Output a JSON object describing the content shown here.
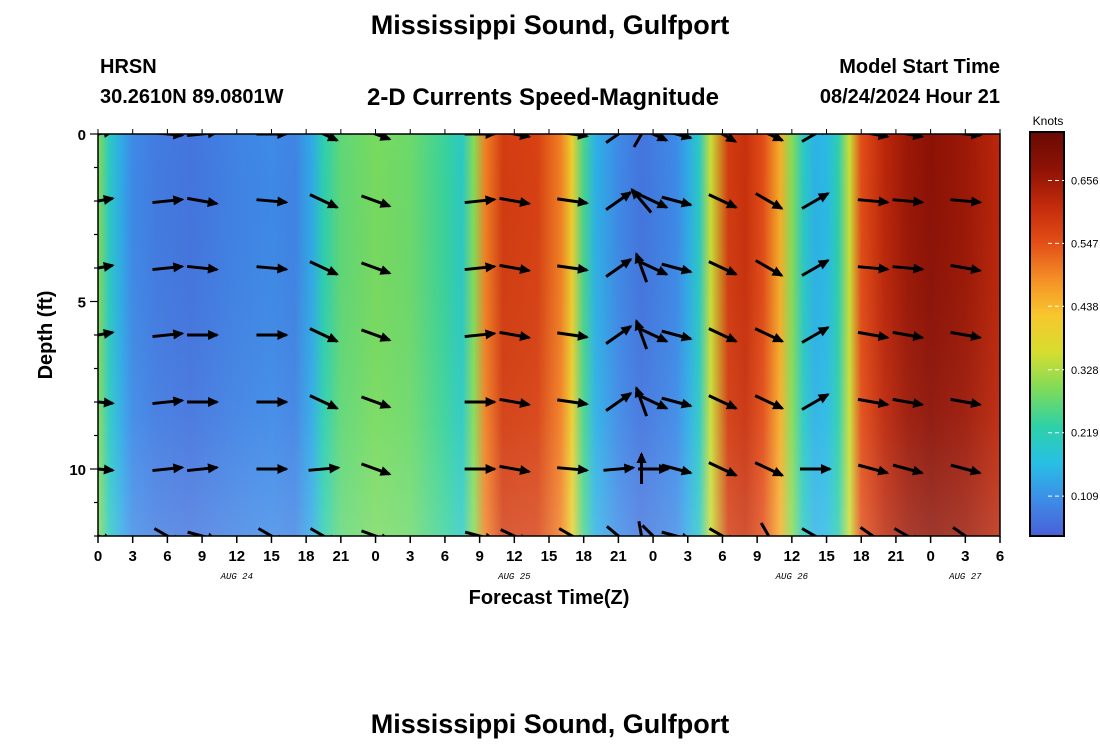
{
  "header": {
    "title": "Mississippi Sound, Gulfport",
    "station": "HRSN",
    "coords": "30.2610N  89.0801W",
    "subtitle": "2-D Currents Speed-Magnitude",
    "model_start_label": "Model Start Time",
    "model_start_value": "08/24/2024 Hour 21"
  },
  "footer": {
    "title": "Mississippi Sound, Gulfport"
  },
  "chart_data": {
    "type": "heatmap",
    "title": "2-D Currents Speed-Magnitude",
    "xlabel": "Forecast Time(Z)",
    "ylabel": "Depth (ft)",
    "x_tick_labels": [
      "0",
      "3",
      "6",
      "9",
      "12",
      "15",
      "18",
      "21",
      "0",
      "3",
      "6",
      "9",
      "12",
      "15",
      "18",
      "21",
      "0",
      "3",
      "6",
      "9",
      "12",
      "15",
      "18",
      "21",
      "0",
      "3",
      "6"
    ],
    "x_range_hours": [
      0,
      78
    ],
    "date_labels": [
      {
        "hour": 12,
        "label": "AUG 24"
      },
      {
        "hour": 36,
        "label": "AUG 25"
      },
      {
        "hour": 60,
        "label": "AUG 26"
      },
      {
        "hour": 75,
        "label": "AUG 27"
      }
    ],
    "y_tick_labels": [
      "0",
      "5",
      "10"
    ],
    "ylim": [
      12,
      0
    ],
    "colorbar": {
      "unit": "Knots",
      "ticks": [
        0.109,
        0.219,
        0.328,
        0.438,
        0.547,
        0.656
      ],
      "range": [
        0.04,
        0.74
      ],
      "stops": [
        "#4a5fd6",
        "#3d8de8",
        "#27c0e4",
        "#2ed1a6",
        "#7edb5a",
        "#d6dd2f",
        "#f7c72d",
        "#f58e26",
        "#e24d17",
        "#c22a0b",
        "#8e1206",
        "#6a0a03"
      ]
    },
    "speed_by_hour": [
      {
        "hour": 0,
        "speed": 0.3
      },
      {
        "hour": 1,
        "speed": 0.2
      },
      {
        "hour": 2,
        "speed": 0.14
      },
      {
        "hour": 3,
        "speed": 0.1
      },
      {
        "hour": 5,
        "speed": 0.08
      },
      {
        "hour": 8,
        "speed": 0.07
      },
      {
        "hour": 12,
        "speed": 0.09
      },
      {
        "hour": 15,
        "speed": 0.1
      },
      {
        "hour": 17,
        "speed": 0.09
      },
      {
        "hour": 18.5,
        "speed": 0.14
      },
      {
        "hour": 19.5,
        "speed": 0.22
      },
      {
        "hour": 21,
        "speed": 0.27
      },
      {
        "hour": 24,
        "speed": 0.29
      },
      {
        "hour": 27,
        "speed": 0.28
      },
      {
        "hour": 30,
        "speed": 0.24
      },
      {
        "hour": 31.5,
        "speed": 0.2
      },
      {
        "hour": 32.5,
        "speed": 0.3
      },
      {
        "hour": 33.5,
        "speed": 0.5
      },
      {
        "hour": 35,
        "speed": 0.58
      },
      {
        "hour": 38,
        "speed": 0.57
      },
      {
        "hour": 40,
        "speed": 0.5
      },
      {
        "hour": 41,
        "speed": 0.4
      },
      {
        "hour": 42,
        "speed": 0.25
      },
      {
        "hour": 43,
        "speed": 0.15
      },
      {
        "hour": 45,
        "speed": 0.1
      },
      {
        "hour": 47,
        "speed": 0.07
      },
      {
        "hour": 48,
        "speed": 0.08
      },
      {
        "hour": 50,
        "speed": 0.1
      },
      {
        "hour": 51,
        "speed": 0.14
      },
      {
        "hour": 52,
        "speed": 0.2
      },
      {
        "hour": 53,
        "speed": 0.35
      },
      {
        "hour": 54.5,
        "speed": 0.58
      },
      {
        "hour": 56,
        "speed": 0.6
      },
      {
        "hour": 57.5,
        "speed": 0.55
      },
      {
        "hour": 59,
        "speed": 0.45
      },
      {
        "hour": 60,
        "speed": 0.3
      },
      {
        "hour": 61,
        "speed": 0.2
      },
      {
        "hour": 62,
        "speed": 0.15
      },
      {
        "hour": 63,
        "speed": 0.16
      },
      {
        "hour": 64,
        "speed": 0.22
      },
      {
        "hour": 65,
        "speed": 0.35
      },
      {
        "hour": 66,
        "speed": 0.55
      },
      {
        "hour": 68,
        "speed": 0.62
      },
      {
        "hour": 70,
        "speed": 0.66
      },
      {
        "hour": 72,
        "speed": 0.68
      },
      {
        "hour": 75,
        "speed": 0.66
      },
      {
        "hour": 78,
        "speed": 0.62
      }
    ],
    "arrow_depths_ft": [
      0,
      2,
      4,
      6,
      8,
      10,
      12
    ],
    "arrow_hours": [
      0,
      6,
      9,
      15,
      19.5,
      24,
      33,
      36,
      41,
      45,
      47,
      48,
      50,
      54,
      58,
      62,
      67,
      70,
      75
    ],
    "arrow_angles_deg": [
      [
        10,
        -5,
        6,
        0,
        -25,
        -20,
        0,
        -10,
        -8,
        35,
        60,
        -25,
        -15,
        -30,
        -25,
        30,
        -10,
        -10,
        -5
      ],
      [
        10,
        6,
        -10,
        -5,
        -25,
        -20,
        6,
        -10,
        -8,
        35,
        130,
        -25,
        -15,
        -25,
        -30,
        30,
        -5,
        -5,
        -5
      ],
      [
        10,
        6,
        -6,
        -5,
        -25,
        -20,
        6,
        -10,
        -8,
        35,
        110,
        -25,
        -15,
        -25,
        -30,
        30,
        -5,
        -5,
        -10
      ],
      [
        10,
        6,
        0,
        0,
        -25,
        -20,
        6,
        -10,
        -8,
        35,
        110,
        -25,
        -15,
        -25,
        -25,
        30,
        -10,
        -10,
        -10
      ],
      [
        -5,
        6,
        0,
        0,
        -25,
        -20,
        0,
        -10,
        -8,
        35,
        110,
        -25,
        -15,
        -25,
        -25,
        30,
        -10,
        -10,
        -10
      ],
      [
        -5,
        6,
        6,
        0,
        5,
        -20,
        0,
        -10,
        -5,
        5,
        90,
        0,
        -15,
        -25,
        -25,
        0,
        -15,
        -15,
        -15
      ],
      [
        -20,
        -30,
        -15,
        -30,
        -30,
        -20,
        -15,
        -25,
        -30,
        -40,
        -80,
        -45,
        -15,
        -30,
        -60,
        -30,
        -35,
        -30,
        -35
      ]
    ]
  }
}
